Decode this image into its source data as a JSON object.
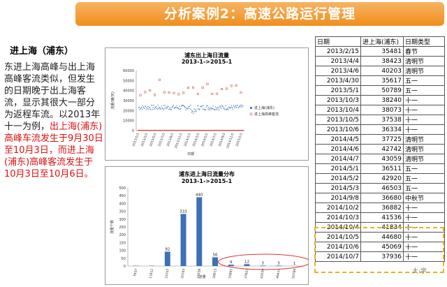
{
  "header": {
    "title": "分析案例2：高速公路运行管理"
  },
  "left": {
    "subtitle": "进上海（浦东）",
    "para_normal": "东进上海高峰与出上海高峰客流类似，但发生的日期晚于出上海客流，显示其很大一部分为返程车流。以2013年十一为例，",
    "para_red": "出上海(浦东)高峰车流发生于9月30日至10月3日，而进上海(浦东)高峰客流发生于10月3日至10月6日。"
  },
  "chart1": {
    "title_line1": "浦东出上海日流量",
    "title_line2": "2013-1->2015-1",
    "ylabel": "流量(辆/天)",
    "xlabel": "日期",
    "legend": [
      "进上海(浦东)",
      "进上海高峰客流"
    ],
    "point_color": "#4a7ec4",
    "peak_color": "#c0392b"
  },
  "chart2": {
    "title_line1": "浦东进上海日流量分布",
    "title_line2": "2013-1->2015-1",
    "ylabel": "流量个数",
    "xlabel": "流量",
    "bar_color": "#3f6fb5",
    "oval_color": "#d33"
  },
  "chart_data": [
    {
      "type": "scatter",
      "title": "浦东出上海日流量",
      "subtitle": "2013-1->2015-1",
      "xlabel": "日期",
      "ylabel": "流量(辆/天)",
      "ylim": [
        0,
        60000
      ],
      "yticks": [
        "0",
        "10000",
        "20000",
        "30000",
        "40000",
        "50000",
        "60000"
      ],
      "xticks": [
        "2013/1/1",
        "2013/3/1",
        "2013/5/1",
        "2013/7/1",
        "2013/9/1",
        "2013/11/1",
        "2014/1/1",
        "2014/3/1",
        "2014/5/1",
        "2014/7/1",
        "2014/9/1",
        "2014/11/1",
        "2015/1/1"
      ],
      "series": [
        {
          "name": "进上海(浦东)",
          "baseline": 23000
        },
        {
          "name": "进上海高峰客流",
          "values": [
            35481,
            38423,
            40203,
            35617,
            50789,
            38240,
            38073,
            37538,
            36334,
            37725,
            42742,
            43059,
            36511,
            42920,
            46503,
            36680,
            36882,
            41536,
            41834,
            44680,
            45069,
            37936
          ]
        }
      ],
      "grid": false,
      "legend": "right"
    },
    {
      "type": "bar",
      "title": "浦东进上海日流量分布",
      "subtitle": "2013-1->2015-1",
      "xlabel": "流量",
      "ylabel": "流量个数",
      "ylim": [
        0,
        500
      ],
      "yticks": [
        "0",
        "50",
        "100",
        "150",
        "200",
        "250",
        "300",
        "350",
        "400",
        "450",
        "500"
      ],
      "categories": [
        "7937",
        "11812",
        "15707",
        "20163",
        "24038",
        "28913",
        "33893",
        "37623",
        "42039",
        "46414",
        "50789"
      ],
      "values": [
        2,
        2,
        92,
        333,
        440,
        56,
        9,
        12,
        3,
        3,
        1
      ],
      "labels": [
        "",
        "",
        "92",
        "333",
        "440",
        "56",
        "9",
        "12",
        "3",
        "3",
        "1"
      ],
      "grid": false
    }
  ],
  "table": {
    "headers": [
      "日期",
      "进上海(浦东)",
      "日期类型"
    ],
    "rows": [
      [
        "2013/2/15",
        "35481",
        "春节"
      ],
      [
        "2013/4/4",
        "38423",
        "清明节"
      ],
      [
        "2013/4/6",
        "40203",
        "清明节"
      ],
      [
        "2013/4/30",
        "35617",
        "五一"
      ],
      [
        "2013/5/1",
        "50789",
        "五一"
      ],
      [
        "2013/10/3",
        "38240",
        "十一"
      ],
      [
        "2013/10/4",
        "38073",
        "十一"
      ],
      [
        "2013/10/5",
        "37538",
        "十一"
      ],
      [
        "2013/10/6",
        "36334",
        "十一"
      ],
      [
        "2014/4/5",
        "37725",
        "清明节"
      ],
      [
        "2014/4/6",
        "42742",
        "清明节"
      ],
      [
        "2014/4/7",
        "43059",
        "清明节"
      ],
      [
        "2014/5/1",
        "36511",
        "五一"
      ],
      [
        "2014/5/2",
        "42920",
        "五一"
      ],
      [
        "2014/5/3",
        "46503",
        "五一"
      ],
      [
        "2014/9/8",
        "36680",
        "中秋节"
      ],
      [
        "2014/10/2",
        "36882",
        "十一"
      ],
      [
        "2014/10/3",
        "41536",
        "十一"
      ],
      [
        "2014/10/4",
        "41834",
        "十一"
      ],
      [
        "2014/10/5",
        "44680",
        "十一"
      ],
      [
        "2014/10/6",
        "45069",
        "十一"
      ],
      [
        "2014/10/7",
        "37936",
        "十一"
      ]
    ],
    "highlight_color": "#e8b21a"
  },
  "watermark": "大·学"
}
